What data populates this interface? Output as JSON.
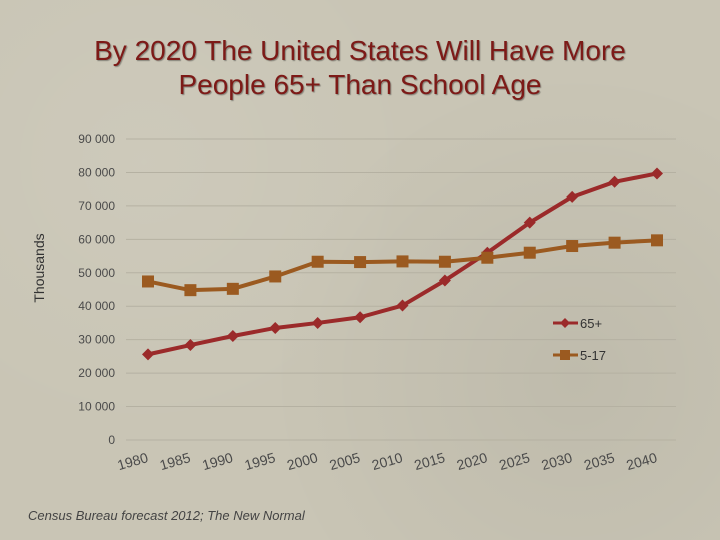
{
  "slide": {
    "title_line1": "By 2020 The United States Will Have More",
    "title_line2": "People 65+ Than School Age",
    "source": "Census Bureau forecast 2012; The New Normal"
  },
  "chart_data": {
    "type": "line",
    "title": "By 2020 The United States Will Have More People 65+ Than School Age",
    "xlabel": "",
    "ylabel": "Thousands",
    "categories": [
      "1980",
      "1985",
      "1990",
      "1995",
      "2000",
      "2005",
      "2010",
      "2015",
      "2020",
      "2025",
      "2030",
      "2035",
      "2040"
    ],
    "y_tick_labels": [
      "0",
      "10 000",
      "20 000",
      "30 000",
      "40 000",
      "50 000",
      "60 000",
      "70 000",
      "80 000",
      "90 000"
    ],
    "ylim": [
      0,
      90000
    ],
    "grid": "horizontal",
    "legend_position": "right",
    "series": [
      {
        "name": "65+",
        "color": "#9b2a2a",
        "marker": "diamond",
        "values": [
          25600,
          28400,
          31100,
          33500,
          35000,
          36700,
          40200,
          47700,
          56000,
          65000,
          72700,
          77200,
          79700
        ]
      },
      {
        "name": "5-17",
        "color": "#9b5a20",
        "marker": "square",
        "values": [
          47400,
          44800,
          45200,
          48900,
          53300,
          53200,
          53400,
          53300,
          54500,
          56000,
          58000,
          59000,
          59700
        ]
      }
    ]
  }
}
